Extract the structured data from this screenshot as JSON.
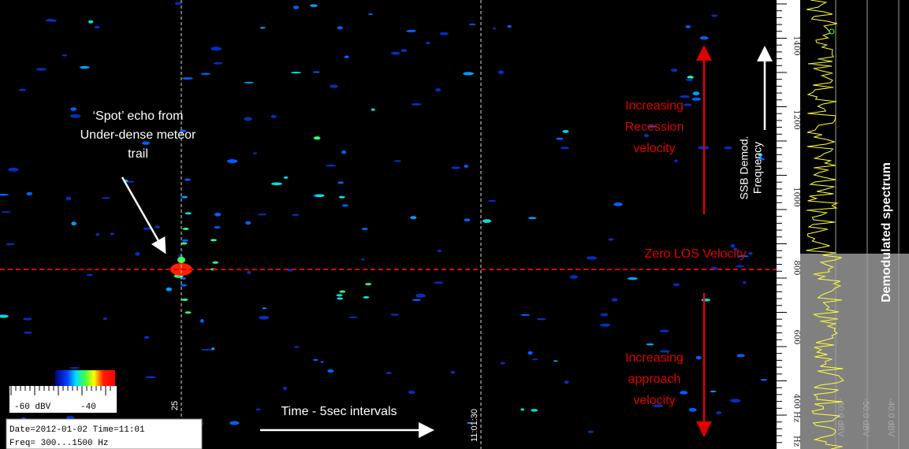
{
  "annotations": {
    "meteor_echo": [
      "‘Spot’ echo from",
      "Under-dense meteor",
      "trail"
    ],
    "recession": [
      "Increasing",
      "Recession",
      "velocity"
    ],
    "zero_los": "Zero LOS Velocity",
    "approach": [
      "Increasing",
      "approach",
      "velocity"
    ],
    "ssb": [
      "SSB Demod.",
      "Frequency"
    ],
    "time_axis": "Time - 5sec intervals",
    "spectrum_title": "Demodulated spectrum"
  },
  "time_labels": [
    "25",
    "11:01:30"
  ],
  "color_scale": [
    "-60 dBV",
    "-40"
  ],
  "info": [
    "Date=2012-01-02 Time=11:01",
    "Freq= 300...1500 Hz"
  ],
  "frequency_labels": [
    "1400",
    "1200",
    "1000",
    "800",
    "600",
    "400 Hz",
    "Hz"
  ],
  "spectrum_levels": [
    "-60.0 dBV",
    "-50.0 dBV",
    "-40.0 dBV"
  ]
}
